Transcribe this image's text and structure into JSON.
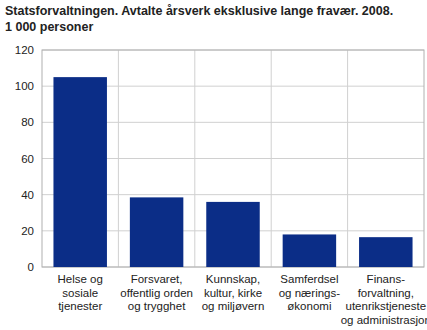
{
  "chart_data": {
    "type": "bar",
    "title": "Statsforvaltningen. Avtalte årsverk eksklusive lange fravær. 2008.",
    "subtitle": "1 000 personer",
    "categories": [
      "Helse og\nsosiale\ntjenester",
      "Forsvaret,\noffentlig orden\nog trygghet",
      "Kunnskap,\nkultur, kirke\nog miljøvern",
      "Samferdsel\nog nærings-\nøkonomi",
      "Finans-\nforvaltning,\nutenrikstjeneste\nog administrasjon"
    ],
    "values": [
      105,
      38.5,
      36,
      18,
      16.5
    ],
    "color": "#0b2d87",
    "ylim": [
      0,
      120
    ],
    "yticks": [
      0,
      20,
      40,
      60,
      80,
      100,
      120
    ],
    "grid": true
  }
}
